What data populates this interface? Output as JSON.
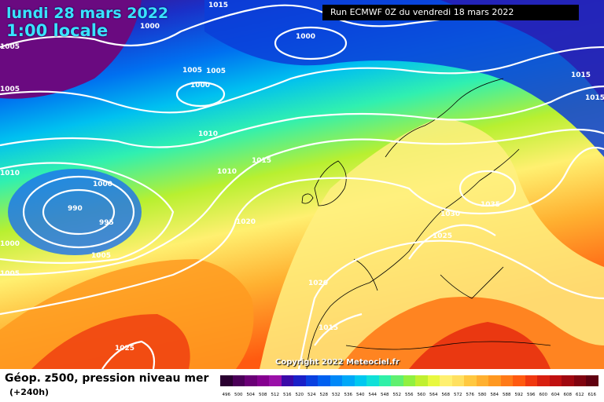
{
  "header": {
    "date_line": "lundi 28 mars 2022",
    "time_line": "1:00 locale",
    "run_info": "Run ECMWF 0Z du vendredi 18 mars 2022"
  },
  "footer": {
    "title": "Géop. z500, pression niveau mer",
    "lead": "(+240h)",
    "copyright": "Copyright 2022 Meteociel.fr"
  },
  "scale": {
    "values": [
      "496",
      "500",
      "504",
      "508",
      "512",
      "516",
      "520",
      "524",
      "528",
      "532",
      "536",
      "540",
      "544",
      "548",
      "552",
      "556",
      "560",
      "564",
      "568",
      "572",
      "576",
      "580",
      "584",
      "588",
      "592",
      "596",
      "600",
      "604",
      "608",
      "612",
      "616"
    ],
    "colors": [
      "#2a0030",
      "#4b0058",
      "#6a0076",
      "#85008f",
      "#9a10a8",
      "#3a0aa8",
      "#1a20c8",
      "#0a40e0",
      "#0060f0",
      "#0088f8",
      "#00a8f8",
      "#00c8f0",
      "#10e0d8",
      "#30f0a8",
      "#60f070",
      "#90f040",
      "#c0f030",
      "#e8f840",
      "#fff070",
      "#ffe060",
      "#ffc840",
      "#ffb030",
      "#ff9820",
      "#ff7a18",
      "#ff5a10",
      "#f03810",
      "#d82010",
      "#c01010",
      "#a00810",
      "#800410",
      "#600010"
    ]
  },
  "isobars": {
    "labels": [
      "1015",
      "1000",
      "1005",
      "1005",
      "1005",
      "1000",
      "1000",
      "1005",
      "1010",
      "1010",
      "1000",
      "990",
      "995",
      "1010",
      "1015",
      "1020",
      "1005",
      "1005",
      "1000",
      "1020",
      "1015",
      "1025",
      "1030",
      "1025",
      "1035",
      "1015",
      "1015"
    ]
  }
}
